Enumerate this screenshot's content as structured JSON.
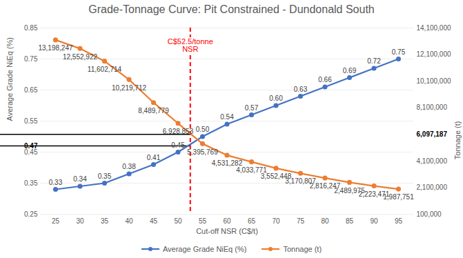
{
  "chart_data": {
    "type": "line",
    "title": "Grade-Tonnage Curve: Pit Constrained - Dundonald South",
    "x_label": "Cut-off NSR (C$/t)",
    "y_label": "Average Grade NiEq (%)",
    "y2_label": "Tonnage (t)",
    "x": [
      25,
      30,
      35,
      40,
      45,
      50,
      55,
      60,
      65,
      70,
      75,
      80,
      85,
      90,
      95
    ],
    "xlim": [
      25,
      95
    ],
    "xticks": [
      25,
      30,
      35,
      40,
      45,
      50,
      55,
      60,
      65,
      70,
      75,
      80,
      85,
      90,
      95
    ],
    "ylim": [
      0.25,
      0.85
    ],
    "yticks": [
      0.25,
      0.35,
      0.45,
      0.55,
      0.65,
      0.75,
      0.85
    ],
    "y2lim": [
      100000,
      14100000
    ],
    "y2ticks": [
      {
        "value": 100000,
        "label": "100,000"
      },
      {
        "value": 2100000,
        "label": "2,100,000"
      },
      {
        "value": 4100000,
        "label": "4,100,000"
      },
      {
        "value": 8100000,
        "label": "8,100,000"
      },
      {
        "value": 10100000,
        "label": "10,100,000"
      },
      {
        "value": 12100000,
        "label": "12,100,000"
      },
      {
        "value": 14100000,
        "label": "14,100,000"
      }
    ],
    "grid": true,
    "legend": "bottom",
    "data_labels": true,
    "series": [
      {
        "name": "Average Grade NiEq (%)",
        "color": "#4472C4",
        "marker": "circle",
        "values": [
          0.33,
          0.34,
          0.35,
          0.38,
          0.41,
          0.45,
          0.5,
          0.54,
          0.57,
          0.6,
          0.63,
          0.66,
          0.69,
          0.72,
          0.75
        ],
        "value_labels": [
          "0.33",
          "0.34",
          "0.35",
          "0.38",
          "0.41",
          "0.45",
          "0.50",
          "0.54",
          "0.57",
          "0.60",
          "0.63",
          "0.66",
          "0.69",
          "0.72",
          "0.75"
        ]
      },
      {
        "name": "Tonnage (t)",
        "color": "#ED7D31",
        "marker": "circle",
        "axis": "y2",
        "values": [
          13198247,
          12552922,
          11602714,
          10219712,
          8489779,
          6928853,
          5395769,
          4531282,
          4033771,
          3552448,
          3170807,
          2816247,
          2489975,
          2223471,
          1987751
        ],
        "value_labels": [
          "13,198,247",
          "12,552,922",
          "11,602,714",
          "10,219,712",
          "8,489,779",
          "6,928,853",
          "5,395,769",
          "4,531,282",
          "4,033,771",
          "3,552,448",
          "3,170,807",
          "2,816,247",
          "2,489,975",
          "2,223,471",
          "1,987,751"
        ]
      }
    ],
    "annotations": [
      {
        "type": "vline",
        "x": 52.5,
        "lines": [
          "C$52.5/tonne",
          "NSR"
        ],
        "color": "#FF0000",
        "line_style": "dashed"
      },
      {
        "type": "hline",
        "y": 0.47,
        "label": "0.47",
        "color": "#000000"
      },
      {
        "type": "hline",
        "axis": "y2",
        "y": 6097187,
        "label": "6,097,187",
        "color": "#000000"
      }
    ]
  }
}
